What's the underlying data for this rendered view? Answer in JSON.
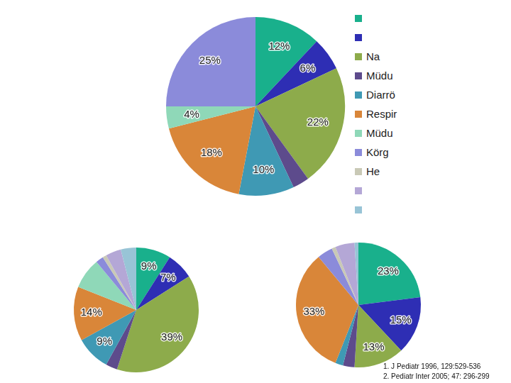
{
  "chart_data": [
    {
      "type": "pie",
      "categories": [
        null,
        null,
        "Na",
        "Müdu",
        "Diarrö",
        "Respir",
        "Müdu",
        "Körg",
        "He",
        null,
        null
      ],
      "values": [
        12,
        6,
        22,
        3,
        10,
        18,
        4,
        25,
        0,
        0,
        0
      ],
      "value_labels": [
        "12%",
        "6%",
        "22%",
        null,
        "10%",
        "18%",
        "4%",
        "25%",
        null,
        null,
        null
      ],
      "colors": [
        "#19b08c",
        "#2e2eb4",
        "#8dab4b",
        "#5d4b8c",
        "#3f99b4",
        "#d98639",
        "#8fd8b8",
        "#8b8bda",
        "#c9c9b6",
        "#b4a7d6",
        "#98c4d6"
      ],
      "data_labels": true,
      "legend": "right"
    },
    {
      "type": "pie",
      "values": [
        9,
        7,
        39,
        3,
        9,
        14,
        8,
        2,
        1,
        4,
        4
      ],
      "value_labels": [
        "9%",
        "7%",
        "39%",
        null,
        "9%",
        "14%",
        null,
        null,
        null,
        null,
        null
      ],
      "colors": [
        "#19b08c",
        "#2e2eb4",
        "#8dab4b",
        "#5d4b8c",
        "#3f99b4",
        "#d98639",
        "#8fd8b8",
        "#8b8bda",
        "#c9c9b6",
        "#b4a7d6",
        "#98c4d6"
      ],
      "data_labels": true
    },
    {
      "type": "pie",
      "values": [
        23,
        15,
        13,
        3,
        2,
        33,
        0,
        4,
        1,
        5,
        1
      ],
      "value_labels": [
        "23%",
        "15%",
        "13%",
        null,
        null,
        "33%",
        null,
        null,
        null,
        null,
        null
      ],
      "colors": [
        "#19b08c",
        "#2e2eb4",
        "#8dab4b",
        "#5d4b8c",
        "#3f99b4",
        "#d98639",
        "#8fd8b8",
        "#8b8bda",
        "#c9c9b6",
        "#b4a7d6",
        "#98c4d6"
      ],
      "data_labels": true
    }
  ],
  "footnotes": [
    "1. J Pediatr 1996, 129:529-536",
    "2. Pediatr Inter 2005; 47: 296-299"
  ]
}
